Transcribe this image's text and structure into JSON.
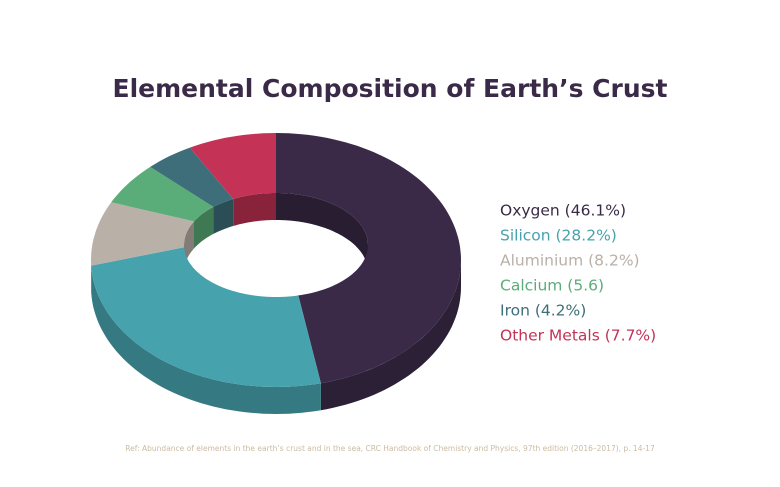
{
  "chart_data": {
    "type": "donut3d",
    "title": "Elemental Composition of Earth’s Crust",
    "categories": [
      "Oxygen (46.1%)",
      "Silicon (28.2%)",
      "Aluminium (8.2%)",
      "Calcium (5.6)",
      "Iron (4.2%)",
      "Other Metals (7.7%)"
    ],
    "values": [
      46.1,
      28.2,
      8.2,
      5.6,
      4.2,
      7.7
    ],
    "colors": [
      "#3a2a48",
      "#46a3ad",
      "#b9b0a8",
      "#5aad78",
      "#3d6e7a",
      "#c43256"
    ],
    "legend": "right",
    "note": "Ref: Abundance of elements in the earth’s crust and in the sea, CRC Handbook of Chemistry and Physics, 97th edition (2016–2017), p. 14-17"
  }
}
